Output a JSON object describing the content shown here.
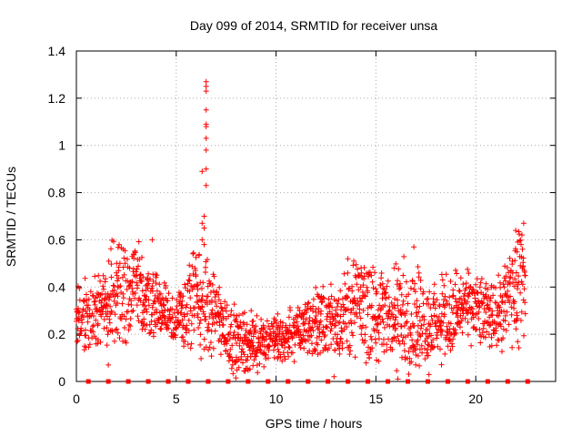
{
  "chart_data": {
    "type": "scatter",
    "title": "Day 099 of 2014, SRMTID for receiver unsa",
    "xlabel": "GPS time / hours",
    "ylabel": "SRMTID / TECUs",
    "xlim": [
      0,
      24
    ],
    "ylim": [
      0,
      1.4
    ],
    "xticks": [
      0,
      5,
      10,
      15,
      20
    ],
    "xtick_labels": [
      "0",
      "5",
      "10",
      "15",
      "20"
    ],
    "yticks": [
      0,
      0.2,
      0.4,
      0.6,
      0.8,
      1,
      1.2,
      1.4
    ],
    "ytick_labels": [
      "0",
      "0.2",
      "0.4",
      "0.6",
      "0.8",
      "1",
      "1.2",
      "1.4"
    ],
    "grid": true,
    "marker": "+",
    "series_color": "#ff0000",
    "envelope_note": "dense cloud of points; per-hour approximate [lower, upper] envelope, values in TECU",
    "envelope_hours": [
      0,
      1,
      2,
      3,
      4,
      5,
      6,
      7,
      8,
      9,
      10,
      11,
      12,
      13,
      14,
      15,
      16,
      17,
      18,
      19,
      20,
      21,
      22,
      22.5
    ],
    "envelope_low": [
      0.12,
      0.12,
      0.16,
      0.22,
      0.18,
      0.14,
      0.12,
      0.12,
      0.03,
      0.05,
      0.08,
      0.1,
      0.1,
      0.12,
      0.1,
      0.1,
      0.05,
      0.05,
      0.05,
      0.12,
      0.18,
      0.14,
      0.14,
      0.25
    ],
    "envelope_high": [
      0.38,
      0.45,
      0.6,
      0.58,
      0.48,
      0.36,
      0.58,
      0.45,
      0.3,
      0.28,
      0.28,
      0.32,
      0.4,
      0.42,
      0.52,
      0.46,
      0.5,
      0.48,
      0.42,
      0.46,
      0.44,
      0.42,
      0.64,
      0.66
    ],
    "highlighted_points": [
      {
        "x": 6.3,
        "y": 0.6
      },
      {
        "x": 6.3,
        "y": 0.67
      },
      {
        "x": 6.3,
        "y": 0.89
      },
      {
        "x": 6.4,
        "y": 0.58
      },
      {
        "x": 6.4,
        "y": 0.65
      },
      {
        "x": 6.4,
        "y": 0.7
      },
      {
        "x": 6.5,
        "y": 0.83
      },
      {
        "x": 6.5,
        "y": 0.9
      },
      {
        "x": 6.5,
        "y": 0.98
      },
      {
        "x": 6.5,
        "y": 1.03
      },
      {
        "x": 6.5,
        "y": 1.08
      },
      {
        "x": 6.5,
        "y": 1.09
      },
      {
        "x": 6.5,
        "y": 1.15
      },
      {
        "x": 6.5,
        "y": 1.23
      },
      {
        "x": 6.5,
        "y": 1.25
      },
      {
        "x": 6.5,
        "y": 1.27
      },
      {
        "x": 1.6,
        "y": 0.07
      },
      {
        "x": 3.8,
        "y": 0.6
      },
      {
        "x": 13.6,
        "y": 0.52
      },
      {
        "x": 16.9,
        "y": 0.57
      },
      {
        "x": 22.0,
        "y": 0.64
      },
      {
        "x": 22.4,
        "y": 0.67
      },
      {
        "x": 12.9,
        "y": 0.02
      },
      {
        "x": 16.1,
        "y": 0.01
      }
    ],
    "baseline_markers_x": [
      0.6,
      1.6,
      2.6,
      3.6,
      4.6,
      5.6,
      6.6,
      7.6,
      8.6,
      9.6,
      10.6,
      11.6,
      12.6,
      13.6,
      14.6,
      15.6,
      16.6,
      17.6,
      18.6,
      19.6,
      20.6,
      21.6,
      22.6
    ]
  }
}
